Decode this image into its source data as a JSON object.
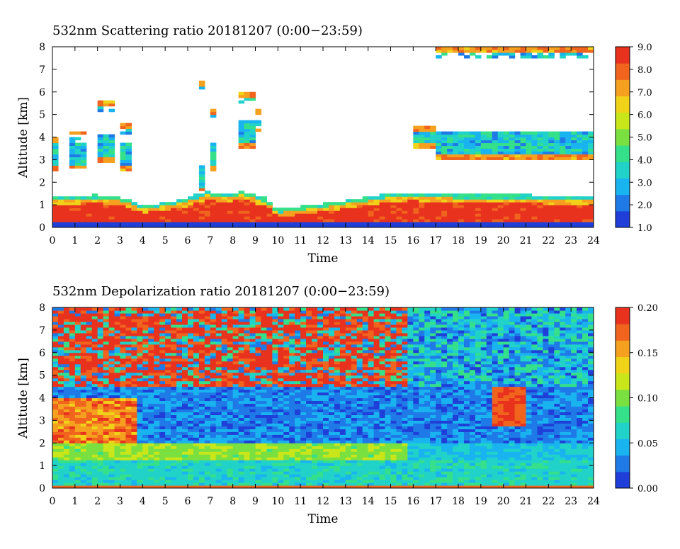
{
  "colors": {
    "scale": [
      "#1f3fd8",
      "#1f7ae8",
      "#19b4f0",
      "#20d2c8",
      "#35e08a",
      "#7ae040",
      "#c8e619",
      "#f0d319",
      "#f5a01e",
      "#f0641e",
      "#e8321e"
    ],
    "cloud": "#ffffff",
    "frame": "#000000"
  },
  "chart_data": [
    {
      "type": "heatmap",
      "title": "532nm Scattering ratio  20181207 (0:00−23:59)",
      "xlabel": "Time",
      "ylabel": "Altitude [km]",
      "xlim": [
        0,
        24
      ],
      "ylim": [
        0,
        8
      ],
      "x_ticks": [
        "0",
        "1",
        "2",
        "3",
        "4",
        "5",
        "6",
        "7",
        "8",
        "9",
        "10",
        "11",
        "12",
        "13",
        "14",
        "15",
        "16",
        "17",
        "18",
        "19",
        "20",
        "21",
        "22",
        "23",
        "24"
      ],
      "y_ticks": [
        "0",
        "1",
        "2",
        "3",
        "4",
        "5",
        "6",
        "7",
        "8"
      ],
      "colorbar": {
        "range": [
          1.0,
          9.0
        ],
        "ticks": [
          "1.0",
          "2.0",
          "3.0",
          "4.0",
          "5.0",
          "6.0",
          "7.0",
          "8.0",
          "9.0"
        ]
      },
      "features": {
        "boundary_layer_top_km": [
          [
            0,
            1.4
          ],
          [
            1,
            1.4
          ],
          [
            2,
            1.45
          ],
          [
            3,
            1.35
          ],
          [
            4,
            1.0
          ],
          [
            5,
            1.1
          ],
          [
            6,
            1.3
          ],
          [
            6.8,
            1.6
          ],
          [
            7.5,
            1.5
          ],
          [
            8.5,
            1.6
          ],
          [
            9.5,
            1.3
          ],
          [
            10,
            0.8
          ],
          [
            11,
            0.95
          ],
          [
            12,
            1.05
          ],
          [
            13,
            1.2
          ],
          [
            14,
            1.35
          ],
          [
            15,
            1.5
          ],
          [
            16,
            1.55
          ],
          [
            17,
            1.5
          ],
          [
            18,
            1.45
          ],
          [
            19,
            1.45
          ],
          [
            20,
            1.45
          ],
          [
            21,
            1.45
          ],
          [
            22,
            1.4
          ],
          [
            23,
            1.4
          ],
          [
            24,
            1.4
          ]
        ],
        "cloud_layers": [
          {
            "t_start": 0.0,
            "t_end": 0.3,
            "base_km": 2.5,
            "top_km": 4.0
          },
          {
            "t_start": 0.8,
            "t_end": 1.6,
            "base_km": 2.6,
            "top_km": 4.3
          },
          {
            "t_start": 2.0,
            "t_end": 2.8,
            "base_km": 2.9,
            "top_km": 5.6
          },
          {
            "t_start": 3.0,
            "t_end": 3.5,
            "base_km": 2.5,
            "top_km": 4.6
          },
          {
            "t_start": 6.5,
            "t_end": 6.8,
            "base_km": 1.6,
            "top_km": 6.5
          },
          {
            "t_start": 6.9,
            "t_end": 7.2,
            "base_km": 2.5,
            "top_km": 5.2
          },
          {
            "t_start": 8.2,
            "t_end": 8.9,
            "base_km": 3.5,
            "top_km": 6.0
          },
          {
            "t_start": 9.0,
            "t_end": 9.2,
            "base_km": 4.2,
            "top_km": 5.2
          },
          {
            "t_start": 16.0,
            "t_end": 17.0,
            "base_km": 3.5,
            "top_km": 4.5
          },
          {
            "t_start": 17.0,
            "t_end": 24.0,
            "base_km": 3.0,
            "top_km": 8.0
          }
        ]
      }
    },
    {
      "type": "heatmap",
      "title": "532nm Depolarization ratio  20181207 (0:00−23:59)",
      "xlabel": "Time",
      "ylabel": "Altitude [km]",
      "xlim": [
        0,
        24
      ],
      "ylim": [
        0,
        8
      ],
      "x_ticks": [
        "0",
        "1",
        "2",
        "3",
        "4",
        "5",
        "6",
        "7",
        "8",
        "9",
        "10",
        "11",
        "12",
        "13",
        "14",
        "15",
        "16",
        "17",
        "18",
        "19",
        "20",
        "21",
        "22",
        "23",
        "24"
      ],
      "y_ticks": [
        "0",
        "1",
        "2",
        "3",
        "4",
        "5",
        "6",
        "7",
        "8"
      ],
      "colorbar": {
        "range": [
          0.0,
          0.2
        ],
        "ticks": [
          "0.00",
          "0.05",
          "0.10",
          "0.15",
          "0.20"
        ]
      },
      "features": {
        "noisy_upper_layer_bottom_km": 4.5,
        "dust_layer": {
          "t_start": 0.0,
          "t_end": 3.7,
          "base_km": 2.0,
          "top_km": 4.0,
          "depol": 0.16
        },
        "ice_cloud_high_depol": {
          "t_start": 19.5,
          "t_end": 21.0,
          "base_km": 2.8,
          "top_km": 4.5,
          "depol": 0.2
        }
      }
    }
  ]
}
